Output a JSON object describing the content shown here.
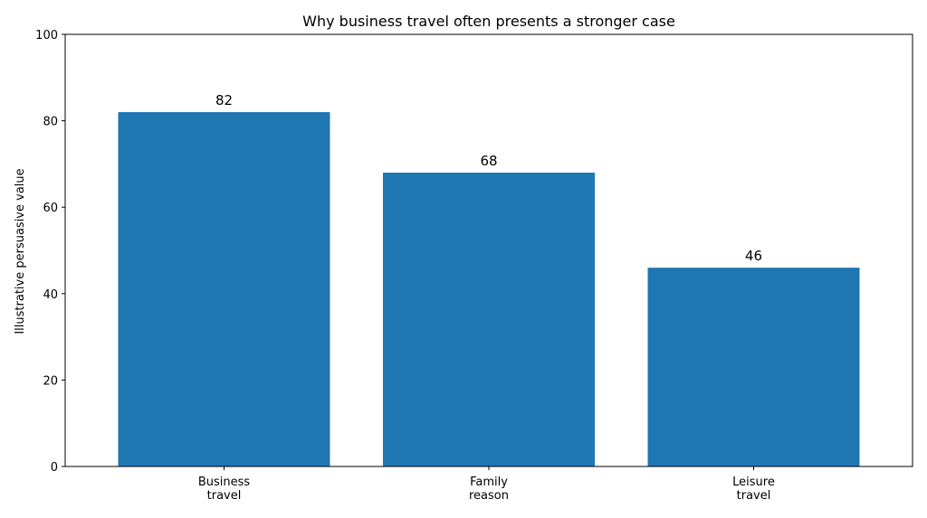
{
  "chart_data": {
    "type": "bar",
    "title": "Why business travel often presents a stronger case",
    "xlabel": "",
    "ylabel": "Illustrative persuasive value",
    "categories": [
      [
        "Business",
        "travel"
      ],
      [
        "Family",
        "reason"
      ],
      [
        "Leisure",
        "travel"
      ]
    ],
    "values": [
      82,
      68,
      46
    ],
    "data_labels": [
      "82",
      "68",
      "46"
    ],
    "ylim": [
      0,
      100
    ],
    "yticks": [
      0,
      20,
      40,
      60,
      80,
      100
    ],
    "grid": false,
    "legend": "none",
    "colors": {
      "bar": "#1f77b4",
      "axis": "#000000",
      "text": "#000000"
    }
  }
}
